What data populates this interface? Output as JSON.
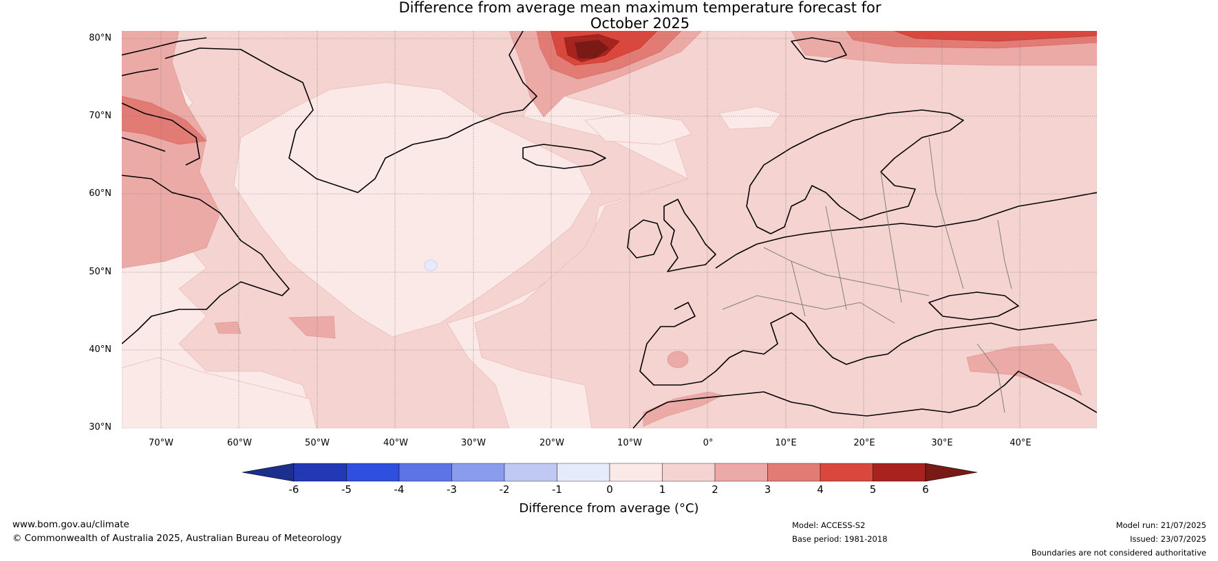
{
  "title": {
    "line1": "Difference from average mean maximum temperature forecast for",
    "line2": "October 2025"
  },
  "map": {
    "region": "North Atlantic and Europe",
    "lat_labels": [
      "80°N",
      "70°N",
      "60°N",
      "50°N",
      "40°N",
      "30°N"
    ],
    "lon_labels": [
      "70°W",
      "60°W",
      "50°W",
      "40°W",
      "30°W",
      "20°W",
      "10°W",
      "0°",
      "10°E",
      "20°E",
      "30°E",
      "40°E"
    ],
    "ocean_color": "#fbe9e7",
    "land_color": "#f4d3d1",
    "coastline_color": "#000000",
    "border_color": "#7f7f7f",
    "gridlines": true
  },
  "colorbar": {
    "ticks": [
      "-6",
      "-5",
      "-4",
      "-3",
      "-2",
      "-1",
      "0",
      "1",
      "2",
      "3",
      "4",
      "5",
      "6"
    ],
    "colors": [
      "#1b2f8c",
      "#2239b5",
      "#2f4fdf",
      "#5b75e6",
      "#8a9dec",
      "#c0c9f4",
      "#e6ebfb",
      "#fbe9e7",
      "#f4d3d1",
      "#ecaaa7",
      "#e37b75",
      "#d9473d",
      "#a8231d",
      "#7a1a17"
    ],
    "label": "Difference from average (°C)"
  },
  "footer": {
    "url": "www.bom.gov.au/climate",
    "copyright": "© Commonwealth of Australia 2025, Australian Bureau of Meteorology",
    "model": "Model: ACCESS-S2",
    "base_period": "Base period: 1981-2018",
    "model_run": "Model run: 21/07/2025",
    "issued": "Issued: 23/07/2025",
    "disclaimer": "Boundaries are not considered authoritative"
  }
}
